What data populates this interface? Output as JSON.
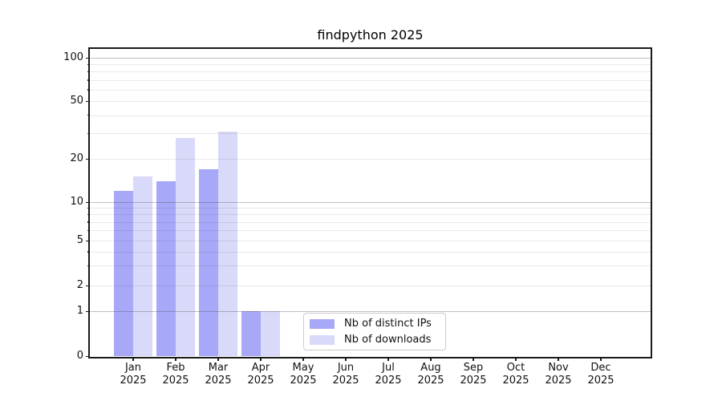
{
  "chart_data": {
    "type": "bar",
    "title": "findpython 2025",
    "categories": [
      "Jan",
      "Feb",
      "Mar",
      "Apr",
      "May",
      "Jun",
      "Jul",
      "Aug",
      "Sep",
      "Oct",
      "Nov",
      "Dec"
    ],
    "year": "2025",
    "series": [
      {
        "name": "Nb of distinct IPs",
        "color": "#a8a8f8",
        "values": [
          12,
          14,
          17,
          1,
          0,
          0,
          0,
          0,
          0,
          0,
          0,
          0
        ]
      },
      {
        "name": "Nb of downloads",
        "color": "#d9d9f9",
        "values": [
          15,
          28,
          31,
          1,
          0,
          0,
          0,
          0,
          0,
          0,
          0,
          0
        ]
      }
    ],
    "y_axis": {
      "scale": "log with zero baseline",
      "tick_labels": [
        "100",
        "50",
        "20",
        "10",
        "5",
        "2",
        "1",
        "0"
      ],
      "tick_values": [
        100,
        50,
        20,
        10,
        5,
        2,
        1,
        0
      ],
      "major_grid_values": [
        100,
        10,
        1
      ],
      "minor_grid_values": [
        90,
        80,
        70,
        60,
        50,
        40,
        30,
        20,
        9,
        8,
        7,
        6,
        5,
        4,
        3,
        2
      ],
      "ylim": [
        0,
        115
      ]
    },
    "x_axis": {
      "tick_label_year": "2025"
    },
    "legend": {
      "position": "inside lower center",
      "entries": [
        "Nb of distinct IPs",
        "Nb of downloads"
      ]
    },
    "grid": true,
    "colors": {
      "bar_distinct_ips": "#a8a8f8",
      "bar_downloads": "#d9d9f9",
      "major_grid": "#bdbdbd",
      "minor_grid": "#eaeaea",
      "spine": "#1a1a1a",
      "text": "#111111",
      "background": "#ffffff"
    }
  }
}
